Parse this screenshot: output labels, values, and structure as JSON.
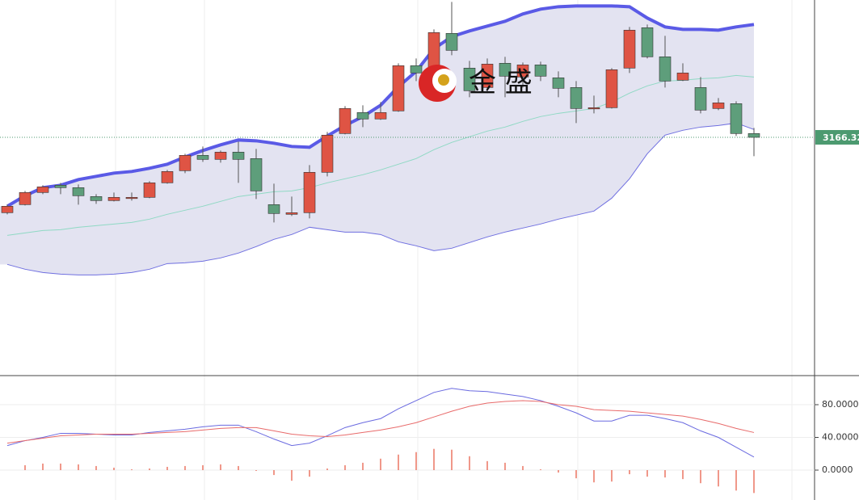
{
  "watermark": "金 盛",
  "chart_data": [
    {
      "type": "candlestick",
      "up_color": "#df5444",
      "down_color": "#5e9e7b",
      "ylim": [
        2871.32,
        3336.32
      ],
      "last_price": 3166.32,
      "last_price_color": "#4c9a70",
      "open": [
        3073,
        3083,
        3098,
        3107,
        3104,
        3093,
        3088,
        3091,
        3092,
        3110,
        3125,
        3144,
        3139,
        3148,
        3140,
        3083,
        3071,
        3073,
        3123,
        3171,
        3197,
        3189,
        3199,
        3255,
        3251,
        3295,
        3252,
        3228,
        3258,
        3241,
        3256,
        3240,
        3228,
        3202,
        3203,
        3252,
        3302,
        3266,
        3237,
        3228,
        3202,
        3208,
        3171
      ],
      "high": [
        3083,
        3100,
        3107,
        3110,
        3108,
        3096,
        3098,
        3098,
        3112,
        3126,
        3146,
        3155,
        3150,
        3161,
        3152,
        3109,
        3093,
        3132,
        3173,
        3205,
        3206,
        3210,
        3258,
        3264,
        3300,
        3334,
        3261,
        3264,
        3266,
        3259,
        3260,
        3248,
        3236,
        3218,
        3252,
        3303,
        3306,
        3292,
        3258,
        3241,
        3215,
        3211,
        3178
      ],
      "low": [
        3071,
        3082,
        3096,
        3096,
        3083,
        3084,
        3087,
        3088,
        3091,
        3109,
        3122,
        3136,
        3135,
        3110,
        3090,
        3061,
        3069,
        3066,
        3118,
        3170,
        3179,
        3188,
        3198,
        3236,
        3224,
        3268,
        3216,
        3221,
        3216,
        3228,
        3236,
        3216,
        3184,
        3196,
        3202,
        3246,
        3264,
        3228,
        3236,
        3196,
        3200,
        3168,
        3143
      ],
      "close": [
        3081,
        3098,
        3105,
        3104,
        3094,
        3088,
        3092,
        3092,
        3110,
        3124,
        3144,
        3139,
        3148,
        3139,
        3100,
        3072,
        3073,
        3123,
        3169,
        3202,
        3189,
        3197,
        3255,
        3246,
        3296,
        3274,
        3224,
        3257,
        3242,
        3256,
        3242,
        3227,
        3202,
        3203,
        3250,
        3299,
        3266,
        3236,
        3246,
        3200,
        3209,
        3171,
        3166.32
      ],
      "band_fill": "#e3e3f1",
      "series": [
        {
          "color": "#5a5ae6",
          "values": [
            3081,
            3094,
            3104,
            3107,
            3114,
            3118,
            3122,
            3124,
            3128,
            3133,
            3142,
            3150,
            3157,
            3163,
            3162,
            3159,
            3155,
            3154,
            3168,
            3181,
            3192,
            3206,
            3229,
            3248,
            3276,
            3291,
            3298,
            3304,
            3310,
            3319,
            3325,
            3328,
            3329,
            3329,
            3329,
            3328,
            3314,
            3303,
            3300,
            3300,
            3299,
            3303,
            3306
          ]
        },
        {
          "color": "#8fd9c4",
          "values": [
            3045,
            3048,
            3051,
            3052,
            3055,
            3057,
            3059,
            3061,
            3065,
            3071,
            3076,
            3081,
            3087,
            3093,
            3096,
            3099,
            3100,
            3104,
            3110,
            3115,
            3120,
            3126,
            3133,
            3140,
            3151,
            3160,
            3167,
            3174,
            3179,
            3186,
            3192,
            3196,
            3199,
            3202,
            3210,
            3221,
            3230,
            3236,
            3237,
            3239,
            3240,
            3243,
            3241
          ]
        },
        {
          "color": "#6f6fe0",
          "values": [
            3009,
            3003,
            2999,
            2997,
            2996,
            2996,
            2997,
            2999,
            3003,
            3010,
            3011,
            3013,
            3017,
            3023,
            3031,
            3040,
            3046,
            3055,
            3052,
            3049,
            3049,
            3046,
            3037,
            3032,
            3026,
            3029,
            3036,
            3043,
            3049,
            3054,
            3059,
            3065,
            3070,
            3075,
            3091,
            3115,
            3146,
            3169,
            3175,
            3179,
            3181,
            3184,
            3176
          ]
        }
      ]
    },
    {
      "type": "indicator",
      "ylim": [
        -36.54,
        115.56
      ],
      "yticks": [
        {
          "value": 80,
          "label": "80.0000"
        },
        {
          "value": 40,
          "label": "40.0000"
        },
        {
          "value": 0,
          "label": "0.0000"
        }
      ],
      "series": [
        {
          "color": "#6a6ae0",
          "values": [
            30,
            36,
            40,
            45,
            45,
            44,
            43,
            43,
            46,
            48,
            50,
            53,
            55,
            55,
            47,
            38,
            30,
            33,
            42,
            52,
            58,
            63,
            75,
            85,
            95,
            100,
            97,
            96,
            93,
            90,
            85,
            78,
            70,
            60,
            60,
            67,
            67,
            63,
            58,
            48,
            40,
            28,
            16
          ]
        },
        {
          "color": "#e86a6a",
          "values": [
            33,
            36,
            39,
            42,
            43,
            44,
            44,
            44,
            45,
            46,
            47,
            49,
            51,
            52,
            52,
            48,
            44,
            42,
            41,
            43,
            46,
            49,
            53,
            58,
            65,
            72,
            78,
            82,
            84,
            85,
            84,
            80,
            78,
            74,
            73,
            72,
            70,
            68,
            66,
            62,
            57,
            51,
            46
          ]
        }
      ],
      "bar_color": "#e8604c",
      "bars": [
        0,
        6,
        8,
        8,
        7,
        5,
        3,
        1,
        2,
        4,
        5,
        6,
        7,
        5,
        -1,
        -6,
        -13,
        -8,
        2,
        6,
        9,
        14,
        19,
        22,
        26,
        25,
        17,
        11,
        9,
        5,
        1,
        -3,
        -10,
        -15,
        -14,
        -5,
        -8,
        -9,
        -11,
        -16,
        -20,
        -25,
        -28
      ]
    }
  ]
}
